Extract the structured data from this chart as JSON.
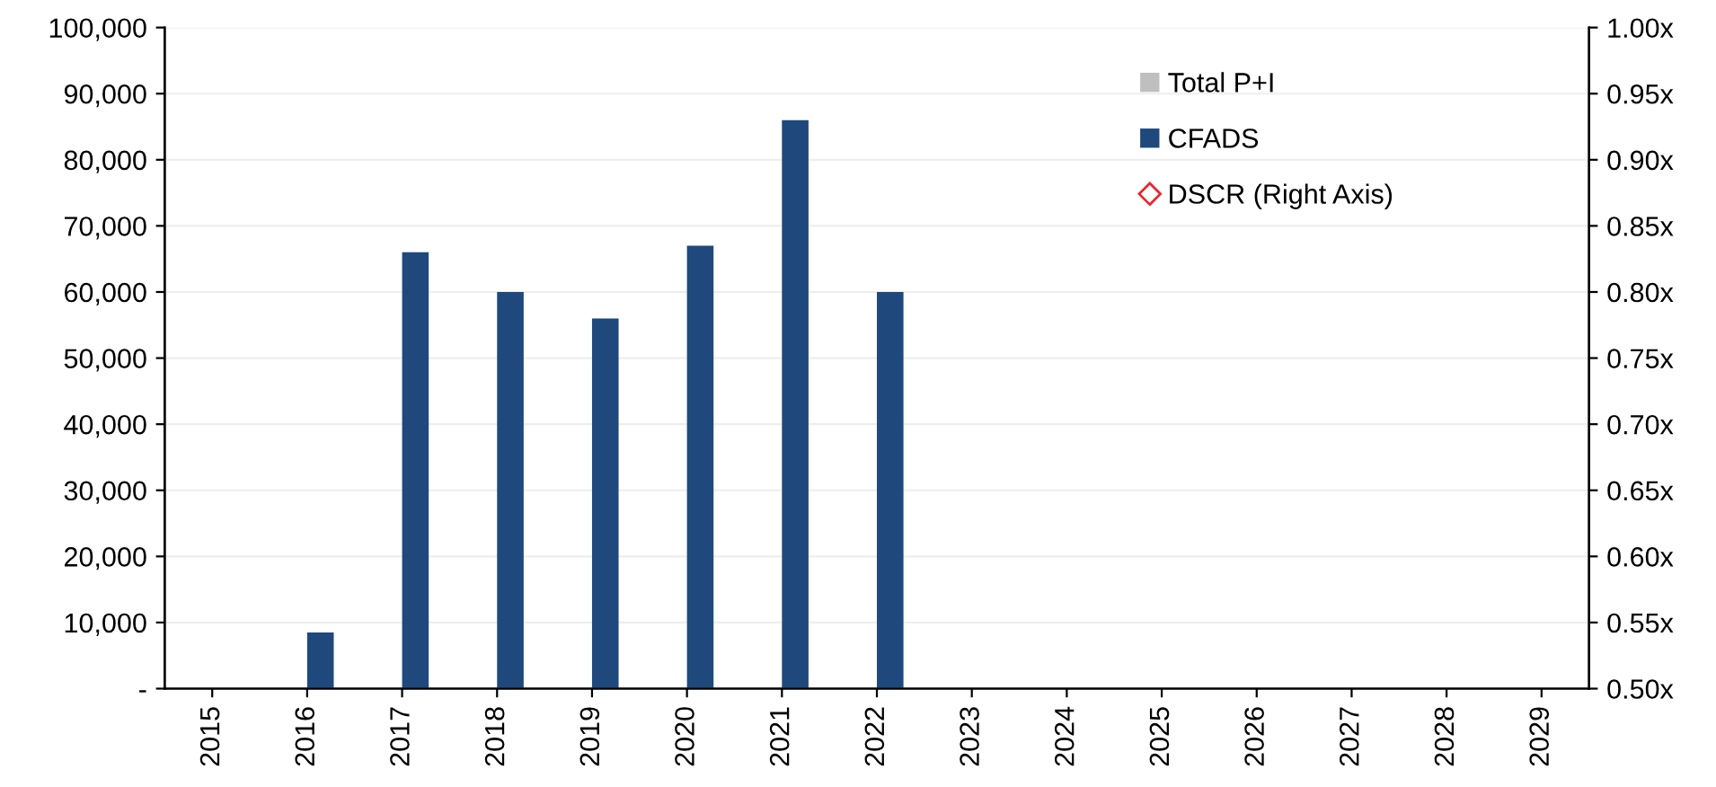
{
  "chart_data": {
    "type": "bar",
    "categories": [
      "2015",
      "2016",
      "2017",
      "2018",
      "2019",
      "2020",
      "2021",
      "2022",
      "2023",
      "2024",
      "2025",
      "2026",
      "2027",
      "2028",
      "2029"
    ],
    "series": [
      {
        "name": "Total P+I",
        "color": "#bfbfbf",
        "values": [
          null,
          null,
          null,
          null,
          null,
          null,
          null,
          null,
          null,
          null,
          null,
          null,
          null,
          null,
          null
        ]
      },
      {
        "name": "CFADS",
        "color": "#1f497d",
        "values": [
          0,
          8500,
          66000,
          60000,
          56000,
          67000,
          86000,
          60000,
          null,
          0,
          0,
          0,
          0,
          0,
          0
        ]
      },
      {
        "name": "DSCR (Right Axis)",
        "type": "line",
        "color": "#e8262b",
        "marker": "diamond",
        "values": [
          null,
          null,
          null,
          null,
          null,
          null,
          null,
          null,
          null,
          null,
          null,
          null,
          null,
          null,
          null
        ]
      }
    ],
    "ylim": [
      0,
      100000
    ],
    "yticks": [
      {
        "value": 0,
        "label": "-"
      },
      {
        "value": 10000,
        "label": "10,000"
      },
      {
        "value": 20000,
        "label": "20,000"
      },
      {
        "value": 30000,
        "label": "30,000"
      },
      {
        "value": 40000,
        "label": "40,000"
      },
      {
        "value": 50000,
        "label": "50,000"
      },
      {
        "value": 60000,
        "label": "60,000"
      },
      {
        "value": 70000,
        "label": "70,000"
      },
      {
        "value": 80000,
        "label": "80,000"
      },
      {
        "value": 90000,
        "label": "90,000"
      },
      {
        "value": 100000,
        "label": "100,000"
      }
    ],
    "y2lim": [
      0.5,
      1.0
    ],
    "y2ticks": [
      {
        "value": 0.5,
        "label": "0.50x"
      },
      {
        "value": 0.55,
        "label": "0.55x"
      },
      {
        "value": 0.6,
        "label": "0.60x"
      },
      {
        "value": 0.65,
        "label": "0.65x"
      },
      {
        "value": 0.7,
        "label": "0.70x"
      },
      {
        "value": 0.75,
        "label": "0.75x"
      },
      {
        "value": 0.8,
        "label": "0.80x"
      },
      {
        "value": 0.85,
        "label": "0.85x"
      },
      {
        "value": 0.9,
        "label": "0.90x"
      },
      {
        "value": 0.95,
        "label": "0.95x"
      },
      {
        "value": 1.0,
        "label": "1.00x"
      }
    ],
    "grid": "y",
    "legend": "top right"
  }
}
